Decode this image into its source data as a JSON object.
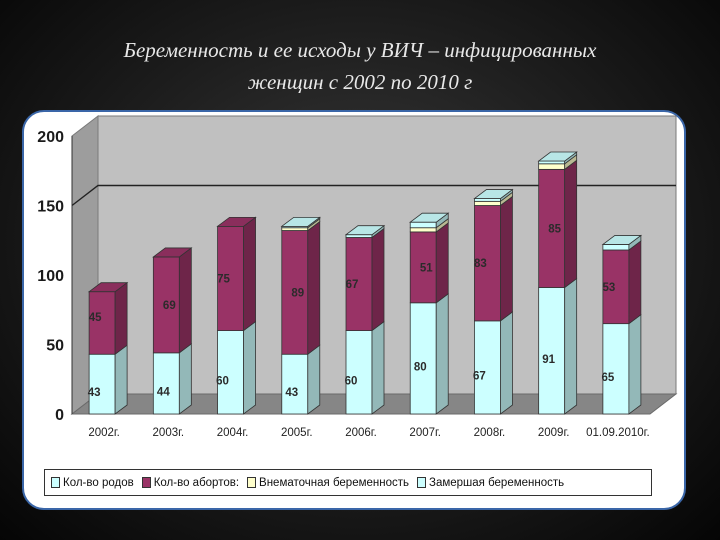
{
  "slide": {
    "title_line1": "Беременность и ее исходы у ВИЧ – инфицированных",
    "title_line2": "женщин с 2002 по 2010 г"
  },
  "chart_data": {
    "type": "bar",
    "stacked": true,
    "categories": [
      "2002г.",
      "2003г.",
      "2004г.",
      "2005г.",
      "2006г.",
      "2007г.",
      "2008г.",
      "2009г.",
      "01.09.2010г."
    ],
    "series": [
      {
        "name": "Кол-во родов",
        "color": "#ccffff",
        "values": [
          43,
          44,
          60,
          43,
          60,
          80,
          67,
          91,
          65
        ]
      },
      {
        "name": "Кол-во абортов:",
        "color": "#993366",
        "values": [
          45,
          69,
          75,
          89,
          67,
          51,
          83,
          85,
          53
        ]
      },
      {
        "name": "Внематочная беременность",
        "color": "#ffffcc",
        "values": [
          0,
          0,
          0,
          2,
          0,
          3,
          3,
          4,
          0
        ]
      },
      {
        "name": "Замершая беременность",
        "color": "#ccffff",
        "values": [
          0,
          0,
          0,
          1,
          2,
          4,
          2,
          2,
          4
        ]
      }
    ],
    "y_ticks": [
      "0",
      "50",
      "100",
      "150",
      "200"
    ],
    "ylim": [
      0,
      200
    ],
    "gridlines": [
      150
    ],
    "legend_position": "bottom",
    "background": "#c0c0c0"
  }
}
